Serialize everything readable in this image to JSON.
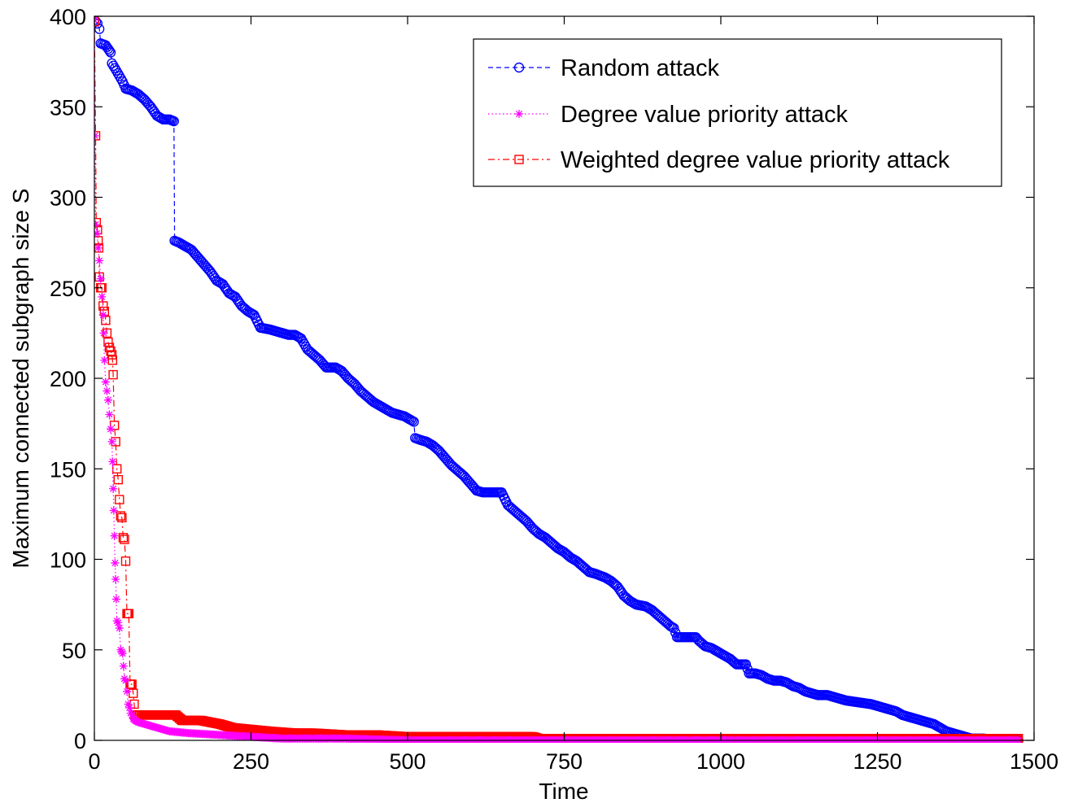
{
  "chart_data": {
    "type": "line",
    "title": "",
    "xlabel": "Time",
    "ylabel": "Maximum connected subgraph size  S",
    "xlim": [
      0,
      1500
    ],
    "ylim": [
      0,
      400
    ],
    "xticks": [
      0,
      250,
      500,
      750,
      1000,
      1250,
      1500
    ],
    "yticks": [
      0,
      50,
      100,
      150,
      200,
      250,
      300,
      350,
      400
    ],
    "xtick_labels": [
      "0",
      "250",
      "500",
      "750",
      "1000",
      "1250",
      "1500"
    ],
    "ytick_labels": [
      "0",
      "50",
      "100",
      "150",
      "200",
      "250",
      "300",
      "350",
      "400"
    ],
    "grid": false,
    "legend_position": "top-right",
    "series": [
      {
        "name": "Random attack",
        "color": "#0000ff",
        "line_style": "dashed",
        "marker": "circle",
        "points": [
          [
            0,
            398
          ],
          [
            5,
            396
          ],
          [
            8,
            393
          ],
          [
            10,
            385
          ],
          [
            18,
            384
          ],
          [
            22,
            382
          ],
          [
            26,
            380
          ],
          [
            28,
            374
          ],
          [
            35,
            370
          ],
          [
            40,
            367
          ],
          [
            45,
            364
          ],
          [
            50,
            360
          ],
          [
            60,
            359
          ],
          [
            70,
            357
          ],
          [
            80,
            354
          ],
          [
            90,
            350
          ],
          [
            100,
            345
          ],
          [
            110,
            343
          ],
          [
            120,
            343
          ],
          [
            127,
            342
          ],
          [
            128,
            276
          ],
          [
            135,
            275
          ],
          [
            145,
            273
          ],
          [
            155,
            271
          ],
          [
            165,
            267
          ],
          [
            175,
            263
          ],
          [
            185,
            259
          ],
          [
            195,
            254
          ],
          [
            205,
            252
          ],
          [
            215,
            247
          ],
          [
            225,
            245
          ],
          [
            235,
            240
          ],
          [
            245,
            237
          ],
          [
            255,
            235
          ],
          [
            265,
            228
          ],
          [
            280,
            227
          ],
          [
            290,
            226
          ],
          [
            300,
            225
          ],
          [
            310,
            224
          ],
          [
            320,
            224
          ],
          [
            330,
            222
          ],
          [
            340,
            216
          ],
          [
            350,
            213
          ],
          [
            360,
            210
          ],
          [
            370,
            206
          ],
          [
            385,
            206
          ],
          [
            395,
            204
          ],
          [
            405,
            200
          ],
          [
            415,
            197
          ],
          [
            425,
            193
          ],
          [
            435,
            190
          ],
          [
            445,
            187
          ],
          [
            455,
            185
          ],
          [
            465,
            183
          ],
          [
            475,
            181
          ],
          [
            485,
            180
          ],
          [
            495,
            179
          ],
          [
            500,
            178
          ],
          [
            510,
            176
          ],
          [
            512,
            167
          ],
          [
            520,
            166
          ],
          [
            530,
            165
          ],
          [
            540,
            163
          ],
          [
            550,
            160
          ],
          [
            560,
            156
          ],
          [
            570,
            152
          ],
          [
            580,
            149
          ],
          [
            590,
            146
          ],
          [
            600,
            142
          ],
          [
            610,
            138
          ],
          [
            620,
            137
          ],
          [
            650,
            137
          ],
          [
            660,
            130
          ],
          [
            670,
            127
          ],
          [
            680,
            124
          ],
          [
            690,
            121
          ],
          [
            700,
            117
          ],
          [
            710,
            114
          ],
          [
            720,
            112
          ],
          [
            730,
            109
          ],
          [
            740,
            106
          ],
          [
            750,
            104
          ],
          [
            760,
            101
          ],
          [
            770,
            99
          ],
          [
            780,
            96
          ],
          [
            790,
            93
          ],
          [
            800,
            92
          ],
          [
            815,
            90
          ],
          [
            825,
            88
          ],
          [
            835,
            85
          ],
          [
            845,
            80
          ],
          [
            855,
            77
          ],
          [
            865,
            75
          ],
          [
            880,
            74
          ],
          [
            890,
            72
          ],
          [
            900,
            69
          ],
          [
            910,
            66
          ],
          [
            920,
            63
          ],
          [
            925,
            62
          ],
          [
            930,
            57
          ],
          [
            960,
            57
          ],
          [
            965,
            55
          ],
          [
            975,
            52
          ],
          [
            985,
            51
          ],
          [
            995,
            49
          ],
          [
            1005,
            47
          ],
          [
            1015,
            45
          ],
          [
            1025,
            42
          ],
          [
            1040,
            42
          ],
          [
            1045,
            37
          ],
          [
            1055,
            37
          ],
          [
            1065,
            36
          ],
          [
            1075,
            34
          ],
          [
            1085,
            33
          ],
          [
            1095,
            33
          ],
          [
            1105,
            32
          ],
          [
            1115,
            30
          ],
          [
            1125,
            29
          ],
          [
            1135,
            27
          ],
          [
            1145,
            26
          ],
          [
            1155,
            25
          ],
          [
            1170,
            25
          ],
          [
            1180,
            24
          ],
          [
            1190,
            23
          ],
          [
            1200,
            22
          ],
          [
            1220,
            21
          ],
          [
            1240,
            20
          ],
          [
            1250,
            19
          ],
          [
            1260,
            18
          ],
          [
            1270,
            17
          ],
          [
            1280,
            16
          ],
          [
            1290,
            14
          ],
          [
            1300,
            13
          ],
          [
            1310,
            12
          ],
          [
            1320,
            11
          ],
          [
            1330,
            10
          ],
          [
            1340,
            9
          ],
          [
            1350,
            7
          ],
          [
            1360,
            5
          ],
          [
            1370,
            4
          ],
          [
            1380,
            3
          ],
          [
            1390,
            2
          ],
          [
            1400,
            1
          ],
          [
            1420,
            1
          ],
          [
            1440,
            0
          ],
          [
            1460,
            0
          ],
          [
            1475,
            0
          ]
        ]
      },
      {
        "name": "Degree value priority attack",
        "color": "#ff00ff",
        "line_style": "dotted",
        "marker": "asterisk",
        "points": [
          [
            0,
            398
          ],
          [
            1,
            334
          ],
          [
            2,
            285
          ],
          [
            4,
            280
          ],
          [
            6,
            272
          ],
          [
            8,
            265
          ],
          [
            10,
            255
          ],
          [
            12,
            245
          ],
          [
            14,
            235
          ],
          [
            15,
            225
          ],
          [
            16,
            210
          ],
          [
            18,
            198
          ],
          [
            20,
            193
          ],
          [
            22,
            188
          ],
          [
            24,
            180
          ],
          [
            26,
            172
          ],
          [
            28,
            165
          ],
          [
            29,
            154
          ],
          [
            30,
            139
          ],
          [
            31,
            127
          ],
          [
            32,
            113
          ],
          [
            33,
            98
          ],
          [
            34,
            89
          ],
          [
            35,
            78
          ],
          [
            36,
            66
          ],
          [
            38,
            65
          ],
          [
            40,
            62
          ],
          [
            42,
            50
          ],
          [
            45,
            48
          ],
          [
            48,
            34
          ],
          [
            50,
            33
          ],
          [
            52,
            27
          ],
          [
            54,
            20
          ],
          [
            56,
            18
          ],
          [
            58,
            15
          ],
          [
            60,
            14
          ],
          [
            62,
            12
          ],
          [
            65,
            11
          ],
          [
            70,
            10
          ],
          [
            80,
            9
          ],
          [
            90,
            8
          ],
          [
            100,
            7
          ],
          [
            120,
            5
          ],
          [
            150,
            4
          ],
          [
            200,
            3
          ],
          [
            250,
            2
          ],
          [
            300,
            1
          ],
          [
            400,
            1
          ],
          [
            500,
            0
          ],
          [
            700,
            0
          ],
          [
            1000,
            0
          ],
          [
            1475,
            0
          ]
        ]
      },
      {
        "name": "Weighted degree value priority attack",
        "color": "#ff0000",
        "line_style": "dashdot",
        "marker": "square",
        "points": [
          [
            0,
            397
          ],
          [
            2,
            334
          ],
          [
            3,
            286
          ],
          [
            5,
            282
          ],
          [
            6,
            276
          ],
          [
            7,
            272
          ],
          [
            8,
            256
          ],
          [
            10,
            250
          ],
          [
            12,
            250
          ],
          [
            14,
            240
          ],
          [
            16,
            237
          ],
          [
            18,
            232
          ],
          [
            20,
            225
          ],
          [
            22,
            220
          ],
          [
            24,
            217
          ],
          [
            26,
            215
          ],
          [
            28,
            213
          ],
          [
            29,
            210
          ],
          [
            30,
            202
          ],
          [
            32,
            174
          ],
          [
            34,
            165
          ],
          [
            36,
            150
          ],
          [
            38,
            144
          ],
          [
            40,
            133
          ],
          [
            42,
            124
          ],
          [
            44,
            123
          ],
          [
            46,
            112
          ],
          [
            48,
            111
          ],
          [
            50,
            99
          ],
          [
            52,
            70
          ],
          [
            55,
            70
          ],
          [
            57,
            31
          ],
          [
            60,
            31
          ],
          [
            62,
            26
          ],
          [
            65,
            14
          ],
          [
            70,
            14
          ],
          [
            80,
            14
          ],
          [
            100,
            14
          ],
          [
            120,
            14
          ],
          [
            130,
            14
          ],
          [
            140,
            11
          ],
          [
            170,
            11
          ],
          [
            200,
            9
          ],
          [
            220,
            7
          ],
          [
            250,
            6
          ],
          [
            280,
            5
          ],
          [
            320,
            4
          ],
          [
            350,
            4
          ],
          [
            400,
            3
          ],
          [
            450,
            3
          ],
          [
            500,
            2
          ],
          [
            600,
            2
          ],
          [
            700,
            2
          ],
          [
            710,
            1
          ],
          [
            900,
            1
          ],
          [
            1100,
            1
          ],
          [
            1300,
            1
          ],
          [
            1400,
            1
          ],
          [
            1475,
            1
          ]
        ]
      }
    ]
  }
}
